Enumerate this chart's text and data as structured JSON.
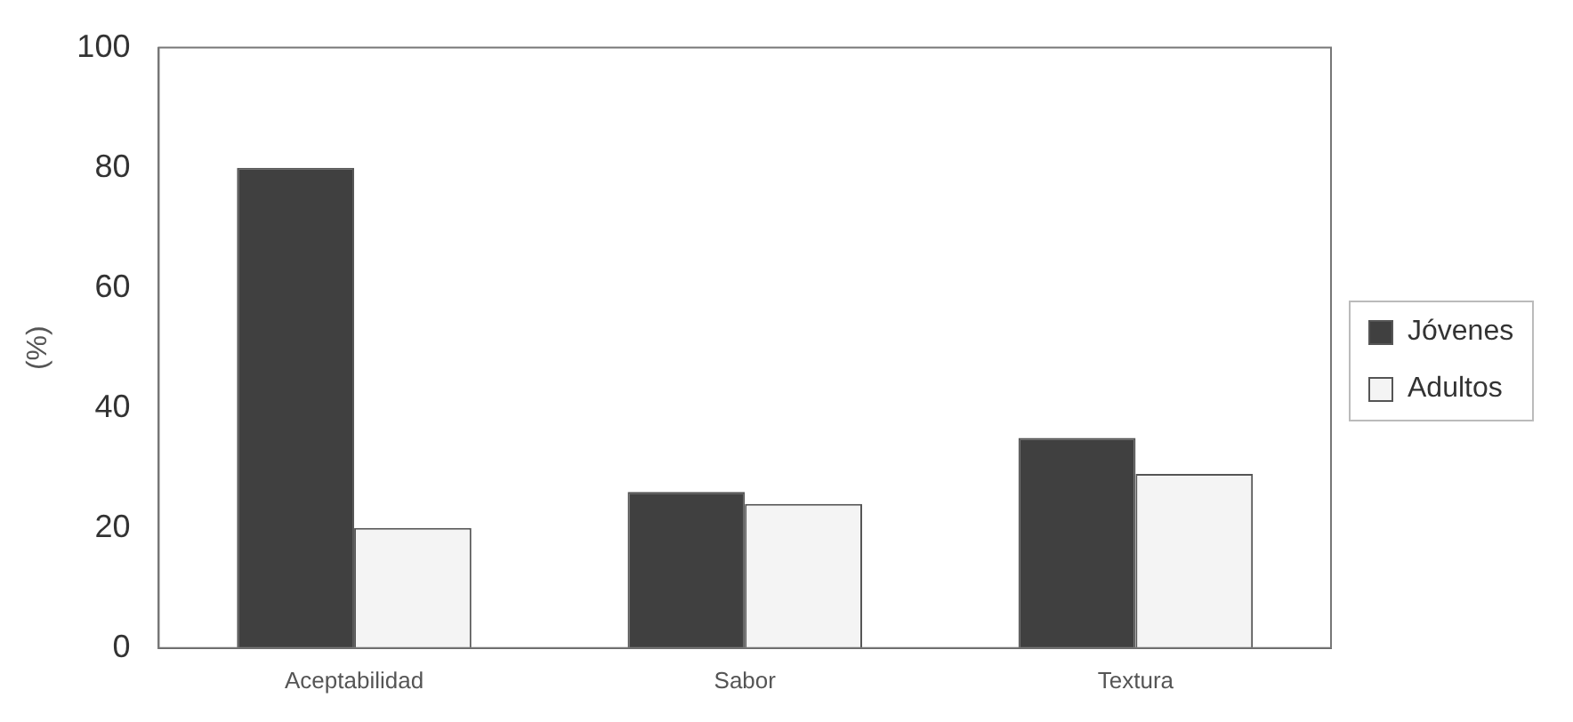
{
  "chart_data": {
    "type": "bar",
    "ylabel": "(%)",
    "categories": [
      "Aceptabilidad",
      "Sabor",
      "Textura"
    ],
    "series": [
      {
        "name": "Jóvenes",
        "color": "#404040",
        "values": [
          80,
          26,
          35
        ]
      },
      {
        "name": "Adultos",
        "color": "#f4f4f4",
        "values": [
          20,
          24,
          29
        ]
      }
    ],
    "ylim": [
      0,
      100
    ],
    "yticks": [
      0,
      20,
      40,
      60,
      80,
      100
    ],
    "grid": false,
    "legend": "right"
  }
}
